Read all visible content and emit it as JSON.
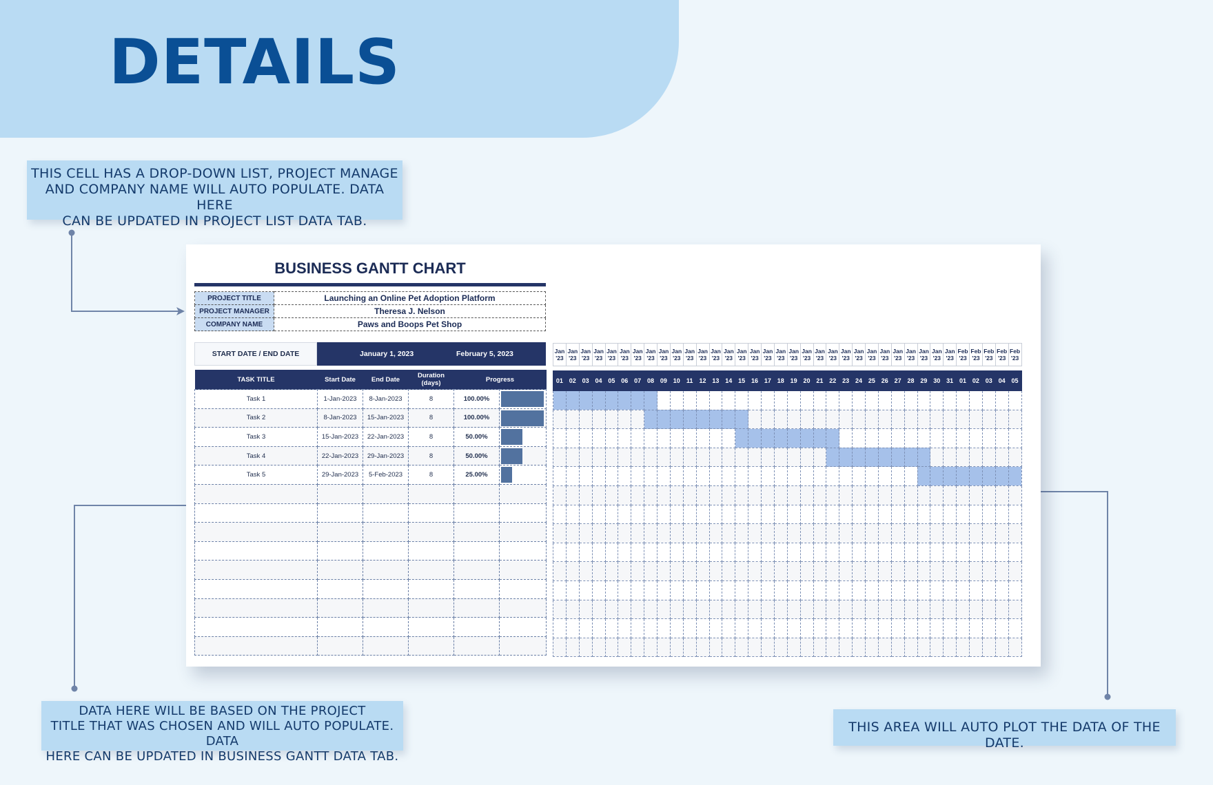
{
  "banner": {
    "title": "DETAILS"
  },
  "notes": {
    "note1": [
      "THIS CELL HAS A DROP-DOWN LIST, PROJECT MANAGE",
      "AND COMPANY NAME WILL AUTO POPULATE. DATA HERE",
      "CAN BE UPDATED IN PROJECT LIST DATA TAB."
    ],
    "note2": [
      "DATA HERE WILL BE BASED ON THE PROJECT",
      "TITLE THAT WAS CHOSEN AND WILL AUTO POPULATE. DATA",
      "HERE CAN BE UPDATED IN BUSINESS GANTT DATA TAB."
    ],
    "note3": "THIS AREA WILL AUTO PLOT THE DATA OF THE DATE."
  },
  "sheet": {
    "title": "BUSINESS GANTT CHART",
    "info": [
      {
        "label": "PROJECT TITLE",
        "value": "Launching an Online Pet Adoption Platform"
      },
      {
        "label": "PROJECT MANAGER",
        "value": "Theresa J. Nelson"
      },
      {
        "label": "COMPANY NAME",
        "value": "Paws and Boops Pet Shop"
      }
    ],
    "dates": {
      "label": "START DATE  /  END DATE",
      "start": "January 1, 2023",
      "end": "February 5, 2023"
    },
    "columns": [
      "TASK TITLE",
      "Start Date",
      "End Date",
      "Duration (days)",
      "Progress"
    ],
    "tasks": [
      {
        "title": "Task 1",
        "start": "1-Jan-2023",
        "end": "8-Jan-2023",
        "duration": "8",
        "progress": "100.00%",
        "fraction": 1.0,
        "from": 0,
        "to": 7
      },
      {
        "title": "Task 2",
        "start": "8-Jan-2023",
        "end": "15-Jan-2023",
        "duration": "8",
        "progress": "100.00%",
        "fraction": 1.0,
        "from": 7,
        "to": 14
      },
      {
        "title": "Task 3",
        "start": "15-Jan-2023",
        "end": "22-Jan-2023",
        "duration": "8",
        "progress": "50.00%",
        "fraction": 0.5,
        "from": 14,
        "to": 21
      },
      {
        "title": "Task 4",
        "start": "22-Jan-2023",
        "end": "29-Jan-2023",
        "duration": "8",
        "progress": "50.00%",
        "fraction": 0.5,
        "from": 21,
        "to": 28
      },
      {
        "title": "Task 5",
        "start": "29-Jan-2023",
        "end": "5-Feb-2023",
        "duration": "8",
        "progress": "25.00%",
        "fraction": 0.25,
        "from": 28,
        "to": 35
      }
    ],
    "empty_rows": 9,
    "timeline": {
      "months": [
        "Jan",
        "Jan",
        "Jan",
        "Jan",
        "Jan",
        "Jan",
        "Jan",
        "Jan",
        "Jan",
        "Jan",
        "Jan",
        "Jan",
        "Jan",
        "Jan",
        "Jan",
        "Jan",
        "Jan",
        "Jan",
        "Jan",
        "Jan",
        "Jan",
        "Jan",
        "Jan",
        "Jan",
        "Jan",
        "Jan",
        "Jan",
        "Jan",
        "Jan",
        "Jan",
        "Jan",
        "Feb",
        "Feb",
        "Feb",
        "Feb",
        "Feb"
      ],
      "year": "'23",
      "days": [
        "01",
        "02",
        "03",
        "04",
        "05",
        "06",
        "07",
        "08",
        "09",
        "10",
        "11",
        "12",
        "13",
        "14",
        "15",
        "16",
        "17",
        "18",
        "19",
        "20",
        "21",
        "22",
        "23",
        "24",
        "25",
        "26",
        "27",
        "28",
        "29",
        "30",
        "31",
        "01",
        "02",
        "03",
        "04",
        "05"
      ]
    }
  },
  "colors": {
    "accent": "#253567",
    "banner": "#b9dbf3",
    "gantt_bar": "#a6c1ea",
    "progress_bar": "#52729f",
    "title": "#0a4f95"
  }
}
